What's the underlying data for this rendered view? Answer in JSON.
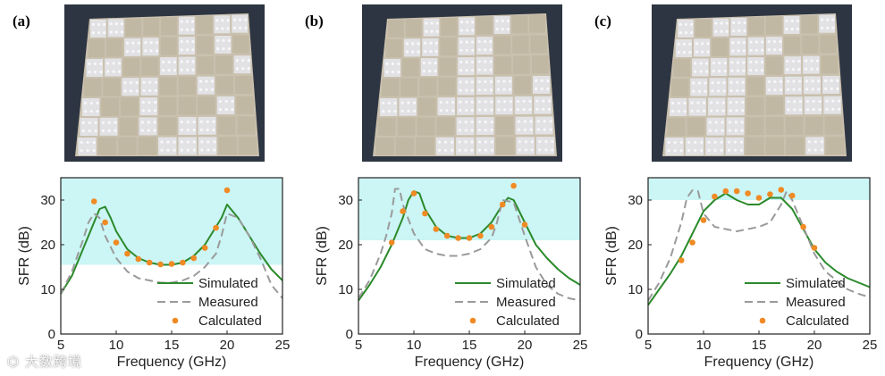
{
  "figure": {
    "panels": [
      {
        "label": "(a)",
        "photo_desc": "metasurface sample a"
      },
      {
        "label": "(b)",
        "photo_desc": "metasurface sample b"
      },
      {
        "label": "(c)",
        "photo_desc": "metasurface sample c"
      }
    ],
    "watermark": "大数跨境"
  },
  "colors": {
    "simulated": "#2b8a2b",
    "measured": "#9a9a9a",
    "calculated": "#f08a24",
    "band": "#ccf5f5",
    "photo_bg": "#2e3542",
    "board": "#c9c0ae"
  },
  "chart_data": [
    {
      "type": "line",
      "panel": "(a)",
      "xlabel": "Frequency (GHz)",
      "ylabel": "SFR (dB)",
      "xlim": [
        5,
        25
      ],
      "ylim": [
        0,
        35
      ],
      "xticks": [
        5,
        10,
        15,
        20,
        25
      ],
      "yticks": [
        0,
        10,
        20,
        30
      ],
      "band": [
        15.5,
        35
      ],
      "legend": [
        "Simulated",
        "Measured",
        "Calculated"
      ],
      "legend_position": "bottom-right",
      "series": [
        {
          "name": "Simulated",
          "x": [
            5,
            6,
            7,
            8,
            8.5,
            9,
            9.5,
            10,
            11,
            12,
            13,
            14,
            15,
            16,
            17,
            18,
            19,
            19.5,
            20,
            21,
            22,
            23,
            24,
            25
          ],
          "y": [
            9,
            13,
            19,
            25,
            28,
            28.5,
            26,
            23,
            19,
            17,
            16,
            15.5,
            15.5,
            16,
            17.5,
            20,
            24,
            26,
            29,
            26,
            22,
            18,
            14.5,
            12
          ]
        },
        {
          "name": "Measured",
          "x": [
            5,
            6,
            7,
            7.5,
            8,
            8.5,
            9,
            10,
            11,
            12,
            13,
            14,
            15,
            16,
            17,
            18,
            19,
            19.5,
            20,
            21,
            22,
            23,
            24,
            25
          ],
          "y": [
            9,
            14,
            21,
            25,
            27,
            26,
            22,
            17,
            14,
            12.5,
            12,
            11.5,
            11.5,
            12,
            13,
            15,
            18,
            22,
            27,
            26,
            22,
            17,
            11,
            8
          ]
        },
        {
          "name": "Calculated",
          "x": [
            8,
            9,
            10,
            11,
            12,
            13,
            14,
            15,
            16,
            17,
            18,
            19,
            20
          ],
          "y": [
            29.7,
            25,
            20.5,
            18,
            16.8,
            16,
            15.6,
            15.7,
            16,
            17,
            19.3,
            23.8,
            32.2
          ]
        }
      ]
    },
    {
      "type": "line",
      "panel": "(b)",
      "xlabel": "Frequency (GHz)",
      "ylabel": "SFR (dB)",
      "xlim": [
        5,
        25
      ],
      "ylim": [
        0,
        35
      ],
      "xticks": [
        5,
        10,
        15,
        20,
        25
      ],
      "yticks": [
        0,
        10,
        20,
        30
      ],
      "band": [
        21,
        35
      ],
      "legend": [
        "Simulated",
        "Measured",
        "Calculated"
      ],
      "legend_position": "bottom-right",
      "series": [
        {
          "name": "Simulated",
          "x": [
            5,
            6,
            7,
            8,
            9,
            9.5,
            10,
            10.5,
            11,
            12,
            13,
            14,
            15,
            16,
            17,
            18,
            18.5,
            19,
            20,
            21,
            22,
            23,
            24,
            25
          ],
          "y": [
            7.5,
            11,
            15,
            20,
            26,
            30,
            32,
            31.5,
            28,
            24,
            22,
            21.5,
            21.5,
            22.5,
            25,
            29,
            30.5,
            30,
            25,
            20,
            17,
            14.5,
            12.5,
            11
          ]
        },
        {
          "name": "Measured",
          "x": [
            5,
            6,
            7,
            7.5,
            8,
            8.3,
            8.7,
            9,
            10,
            11,
            12,
            13,
            14,
            15,
            16,
            17,
            17.5,
            18,
            19,
            20,
            21,
            22,
            23,
            24,
            25
          ],
          "y": [
            8,
            12,
            18,
            22,
            27,
            32.5,
            32.5,
            29,
            22.5,
            19,
            18,
            17.5,
            17.5,
            18,
            19,
            21.5,
            25,
            30,
            29.5,
            22,
            15,
            11,
            9,
            8,
            7.5
          ]
        },
        {
          "name": "Calculated",
          "x": [
            8,
            9,
            10,
            11,
            12,
            13,
            14,
            15,
            16,
            17,
            18,
            19,
            20
          ],
          "y": [
            20.5,
            27.5,
            31.5,
            27,
            23.5,
            22,
            21.5,
            21.5,
            22,
            24,
            29,
            33.2,
            24.5
          ]
        }
      ]
    },
    {
      "type": "line",
      "panel": "(c)",
      "xlabel": "Frequency (GHz)",
      "ylabel": "SFR (dB)",
      "xlim": [
        5,
        25
      ],
      "ylim": [
        0,
        35
      ],
      "xticks": [
        5,
        10,
        15,
        20,
        25
      ],
      "yticks": [
        0,
        10,
        20,
        30
      ],
      "band": [
        30,
        35
      ],
      "legend": [
        "Simulated",
        "Measured",
        "Calculated"
      ],
      "legend_position": "bottom-right",
      "series": [
        {
          "name": "Simulated",
          "x": [
            5,
            6,
            7,
            8,
            9,
            10,
            11,
            12,
            13,
            14,
            15,
            16,
            17,
            18,
            19,
            20,
            21,
            22,
            23,
            24,
            25
          ],
          "y": [
            6.5,
            10,
            13.5,
            17.5,
            22.5,
            27.5,
            30,
            31.5,
            30,
            29,
            29,
            30.5,
            30.5,
            28,
            23.5,
            19,
            16,
            14,
            12.5,
            11.5,
            10.5
          ]
        },
        {
          "name": "Measured",
          "x": [
            5,
            6,
            7,
            8,
            8.5,
            9,
            9.5,
            10,
            11,
            12,
            13,
            14,
            15,
            16,
            17,
            17.5,
            18,
            19,
            20,
            21,
            22,
            23,
            24,
            25
          ],
          "y": [
            7.5,
            11.5,
            17,
            25,
            30.5,
            32.2,
            32,
            27,
            24,
            23.5,
            23,
            23.5,
            24,
            25,
            29,
            32,
            30,
            24,
            18,
            14,
            12,
            10,
            9,
            8.2
          ]
        },
        {
          "name": "Calculated",
          "x": [
            8,
            9,
            10,
            11,
            12,
            13,
            14,
            15,
            16,
            17,
            18,
            19,
            20
          ],
          "y": [
            16.5,
            20.5,
            25.5,
            30.8,
            32,
            32,
            31.5,
            30.5,
            31.3,
            32.3,
            31,
            24,
            19.3
          ]
        }
      ]
    }
  ]
}
